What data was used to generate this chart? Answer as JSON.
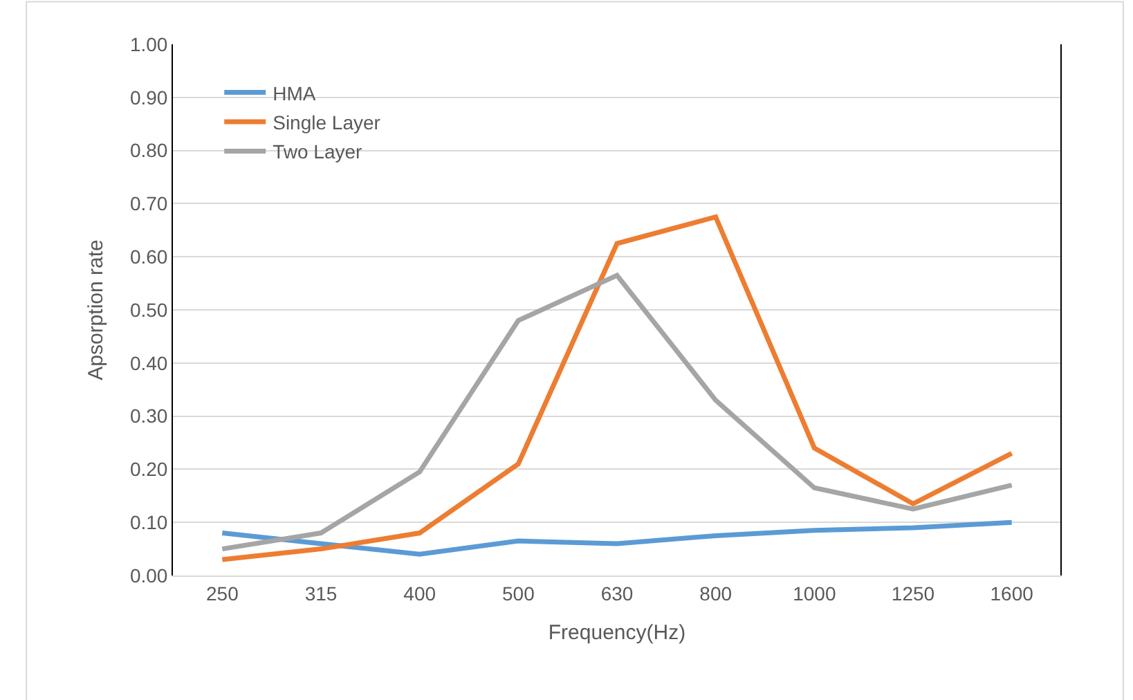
{
  "chart_data": {
    "type": "line",
    "xlabel": "Frequency(Hz)",
    "ylabel": "Apsorption rate",
    "categories": [
      "250",
      "315",
      "400",
      "500",
      "630",
      "800",
      "1000",
      "1250",
      "1600"
    ],
    "series": [
      {
        "name": "HMA",
        "color": "#5b9bd5",
        "values": [
          0.08,
          0.06,
          0.04,
          0.065,
          0.06,
          0.075,
          0.085,
          0.09,
          0.1
        ]
      },
      {
        "name": "Single Layer",
        "color": "#ed7d31",
        "values": [
          0.03,
          0.05,
          0.08,
          0.21,
          0.625,
          0.675,
          0.24,
          0.135,
          0.23
        ]
      },
      {
        "name": "Two Layer",
        "color": "#a5a5a5",
        "values": [
          0.05,
          0.08,
          0.195,
          0.48,
          0.565,
          0.33,
          0.165,
          0.125,
          0.17
        ]
      }
    ],
    "ylim": [
      0,
      1
    ],
    "yticks": [
      {
        "value": 0,
        "label": "0.00"
      },
      {
        "value": 0.1,
        "label": "0.10"
      },
      {
        "value": 0.2,
        "label": "0.20"
      },
      {
        "value": 0.3,
        "label": "0.30"
      },
      {
        "value": 0.4,
        "label": "0.40"
      },
      {
        "value": 0.5,
        "label": "0.50"
      },
      {
        "value": 0.6,
        "label": "0.60"
      },
      {
        "value": 0.7,
        "label": "0.70"
      },
      {
        "value": 0.8,
        "label": "0.80"
      },
      {
        "value": 0.9,
        "label": "0.90"
      },
      {
        "value": 1,
        "label": "1.00"
      }
    ],
    "grid": "y",
    "legend": "top left",
    "marker": "none",
    "line_style": "solid"
  }
}
